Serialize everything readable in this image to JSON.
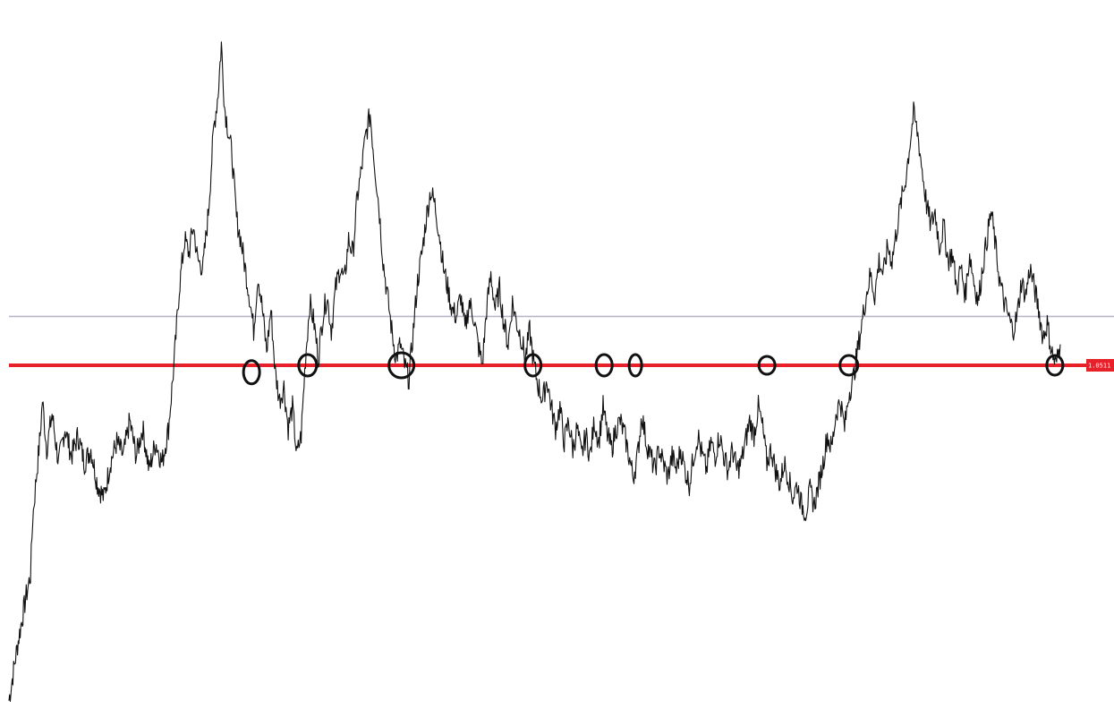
{
  "chart_data": {
    "type": "line",
    "title": "",
    "xlabel": "",
    "ylabel": "",
    "x_range": [
      0,
      1000
    ],
    "ylim": [
      0.0,
      1.0
    ],
    "grid": false,
    "price_tag": {
      "text": "1.0511",
      "color": "#e8202a",
      "text_color": "#ffffff"
    },
    "series": [
      {
        "line_color": "#111111",
        "points": [
          [
            0,
            0.02
          ],
          [
            8,
            0.1
          ],
          [
            16,
            0.17
          ],
          [
            20,
            0.2
          ],
          [
            22,
            0.28
          ],
          [
            26,
            0.35
          ],
          [
            29,
            0.4
          ],
          [
            31,
            0.45
          ],
          [
            35,
            0.38
          ],
          [
            40,
            0.43
          ],
          [
            46,
            0.36
          ],
          [
            52,
            0.41
          ],
          [
            58,
            0.37
          ],
          [
            64,
            0.4
          ],
          [
            70,
            0.36
          ],
          [
            76,
            0.38
          ],
          [
            82,
            0.33
          ],
          [
            88,
            0.31
          ],
          [
            94,
            0.36
          ],
          [
            100,
            0.39
          ],
          [
            106,
            0.37
          ],
          [
            112,
            0.42
          ],
          [
            118,
            0.37
          ],
          [
            124,
            0.41
          ],
          [
            130,
            0.35
          ],
          [
            136,
            0.39
          ],
          [
            142,
            0.36
          ],
          [
            148,
            0.41
          ],
          [
            153,
            0.5
          ],
          [
            158,
            0.61
          ],
          [
            163,
            0.68
          ],
          [
            167,
            0.66
          ],
          [
            171,
            0.7
          ],
          [
            175,
            0.65
          ],
          [
            180,
            0.64
          ],
          [
            185,
            0.72
          ],
          [
            190,
            0.84
          ],
          [
            194,
            0.89
          ],
          [
            197,
            0.96
          ],
          [
            200,
            0.87
          ],
          [
            203,
            0.84
          ],
          [
            207,
            0.8
          ],
          [
            211,
            0.71
          ],
          [
            215,
            0.68
          ],
          [
            219,
            0.64
          ],
          [
            223,
            0.6
          ],
          [
            227,
            0.55
          ],
          [
            231,
            0.63
          ],
          [
            235,
            0.58
          ],
          [
            239,
            0.52
          ],
          [
            243,
            0.58
          ],
          [
            247,
            0.49
          ],
          [
            251,
            0.45
          ],
          [
            255,
            0.47
          ],
          [
            259,
            0.41
          ],
          [
            263,
            0.44
          ],
          [
            267,
            0.37
          ],
          [
            271,
            0.4
          ],
          [
            275,
            0.51
          ],
          [
            279,
            0.59
          ],
          [
            283,
            0.56
          ],
          [
            287,
            0.51
          ],
          [
            291,
            0.57
          ],
          [
            295,
            0.6
          ],
          [
            299,
            0.55
          ],
          [
            303,
            0.61
          ],
          [
            307,
            0.64
          ],
          [
            311,
            0.62
          ],
          [
            315,
            0.68
          ],
          [
            319,
            0.66
          ],
          [
            323,
            0.74
          ],
          [
            327,
            0.78
          ],
          [
            331,
            0.83
          ],
          [
            335,
            0.86
          ],
          [
            339,
            0.79
          ],
          [
            343,
            0.73
          ],
          [
            347,
            0.65
          ],
          [
            351,
            0.6
          ],
          [
            355,
            0.55
          ],
          [
            359,
            0.51
          ],
          [
            363,
            0.53
          ],
          [
            367,
            0.5
          ],
          [
            371,
            0.48
          ],
          [
            375,
            0.55
          ],
          [
            379,
            0.62
          ],
          [
            383,
            0.66
          ],
          [
            387,
            0.71
          ],
          [
            391,
            0.75
          ],
          [
            395,
            0.73
          ],
          [
            399,
            0.69
          ],
          [
            403,
            0.64
          ],
          [
            407,
            0.61
          ],
          [
            411,
            0.58
          ],
          [
            415,
            0.57
          ],
          [
            419,
            0.6
          ],
          [
            423,
            0.55
          ],
          [
            427,
            0.59
          ],
          [
            431,
            0.57
          ],
          [
            435,
            0.53
          ],
          [
            439,
            0.5
          ],
          [
            443,
            0.58
          ],
          [
            447,
            0.63
          ],
          [
            451,
            0.58
          ],
          [
            455,
            0.61
          ],
          [
            459,
            0.56
          ],
          [
            463,
            0.53
          ],
          [
            467,
            0.59
          ],
          [
            471,
            0.56
          ],
          [
            475,
            0.54
          ],
          [
            479,
            0.51
          ],
          [
            483,
            0.55
          ],
          [
            487,
            0.5
          ],
          [
            491,
            0.47
          ],
          [
            495,
            0.45
          ],
          [
            499,
            0.48
          ],
          [
            503,
            0.44
          ],
          [
            507,
            0.41
          ],
          [
            511,
            0.44
          ],
          [
            515,
            0.39
          ],
          [
            519,
            0.42
          ],
          [
            523,
            0.38
          ],
          [
            527,
            0.41
          ],
          [
            531,
            0.37
          ],
          [
            535,
            0.4
          ],
          [
            539,
            0.37
          ],
          [
            543,
            0.42
          ],
          [
            547,
            0.39
          ],
          [
            551,
            0.44
          ],
          [
            555,
            0.4
          ],
          [
            559,
            0.38
          ],
          [
            563,
            0.41
          ],
          [
            567,
            0.42
          ],
          [
            571,
            0.4
          ],
          [
            575,
            0.37
          ],
          [
            579,
            0.34
          ],
          [
            583,
            0.37
          ],
          [
            587,
            0.43
          ],
          [
            591,
            0.39
          ],
          [
            595,
            0.37
          ],
          [
            599,
            0.35
          ],
          [
            603,
            0.38
          ],
          [
            607,
            0.36
          ],
          [
            611,
            0.34
          ],
          [
            615,
            0.37
          ],
          [
            619,
            0.35
          ],
          [
            623,
            0.38
          ],
          [
            627,
            0.35
          ],
          [
            631,
            0.33
          ],
          [
            635,
            0.37
          ],
          [
            639,
            0.4
          ],
          [
            643,
            0.37
          ],
          [
            647,
            0.35
          ],
          [
            651,
            0.39
          ],
          [
            655,
            0.37
          ],
          [
            659,
            0.4
          ],
          [
            663,
            0.37
          ],
          [
            667,
            0.35
          ],
          [
            671,
            0.38
          ],
          [
            675,
            0.35
          ],
          [
            679,
            0.36
          ],
          [
            683,
            0.39
          ],
          [
            687,
            0.42
          ],
          [
            691,
            0.4
          ],
          [
            695,
            0.44
          ],
          [
            699,
            0.41
          ],
          [
            703,
            0.36
          ],
          [
            707,
            0.38
          ],
          [
            711,
            0.35
          ],
          [
            715,
            0.33
          ],
          [
            719,
            0.36
          ],
          [
            723,
            0.34
          ],
          [
            727,
            0.31
          ],
          [
            731,
            0.33
          ],
          [
            735,
            0.3
          ],
          [
            739,
            0.29
          ],
          [
            743,
            0.32
          ],
          [
            747,
            0.3
          ],
          [
            751,
            0.33
          ],
          [
            755,
            0.36
          ],
          [
            759,
            0.4
          ],
          [
            763,
            0.38
          ],
          [
            767,
            0.43
          ],
          [
            771,
            0.45
          ],
          [
            775,
            0.41
          ],
          [
            779,
            0.46
          ],
          [
            783,
            0.48
          ],
          [
            787,
            0.52
          ],
          [
            791,
            0.56
          ],
          [
            795,
            0.6
          ],
          [
            799,
            0.63
          ],
          [
            803,
            0.6
          ],
          [
            807,
            0.65
          ],
          [
            811,
            0.63
          ],
          [
            815,
            0.67
          ],
          [
            819,
            0.65
          ],
          [
            823,
            0.69
          ],
          [
            827,
            0.73
          ],
          [
            831,
            0.76
          ],
          [
            835,
            0.81
          ],
          [
            839,
            0.86
          ],
          [
            843,
            0.83
          ],
          [
            847,
            0.78
          ],
          [
            851,
            0.73
          ],
          [
            855,
            0.7
          ],
          [
            859,
            0.72
          ],
          [
            863,
            0.67
          ],
          [
            867,
            0.7
          ],
          [
            871,
            0.65
          ],
          [
            875,
            0.66
          ],
          [
            879,
            0.61
          ],
          [
            883,
            0.64
          ],
          [
            887,
            0.6
          ],
          [
            891,
            0.66
          ],
          [
            895,
            0.62
          ],
          [
            899,
            0.59
          ],
          [
            903,
            0.64
          ],
          [
            907,
            0.68
          ],
          [
            911,
            0.72
          ],
          [
            915,
            0.67
          ],
          [
            919,
            0.62
          ],
          [
            923,
            0.59
          ],
          [
            927,
            0.57
          ],
          [
            931,
            0.55
          ],
          [
            935,
            0.57
          ],
          [
            939,
            0.62
          ],
          [
            943,
            0.6
          ],
          [
            947,
            0.64
          ],
          [
            951,
            0.61
          ],
          [
            955,
            0.58
          ],
          [
            959,
            0.54
          ],
          [
            963,
            0.56
          ],
          [
            967,
            0.52
          ],
          [
            971,
            0.5
          ],
          [
            975,
            0.53
          ]
        ]
      }
    ],
    "reference_lines": [
      {
        "value": 0.57,
        "color": "#b7b7c8",
        "stroke": 1.6
      },
      {
        "value": 0.5,
        "color": "#e8202a",
        "stroke": 4
      }
    ],
    "annotations": {
      "type": "circle",
      "color": "#111111",
      "markers": [
        {
          "x": 225,
          "y": 0.49
        },
        {
          "x": 277,
          "y": 0.5
        },
        {
          "x": 364,
          "y": 0.5
        },
        {
          "x": 486,
          "y": 0.5
        },
        {
          "x": 552,
          "y": 0.5
        },
        {
          "x": 581,
          "y": 0.5
        },
        {
          "x": 703,
          "y": 0.5
        },
        {
          "x": 779,
          "y": 0.5
        },
        {
          "x": 970,
          "y": 0.5
        }
      ]
    }
  }
}
